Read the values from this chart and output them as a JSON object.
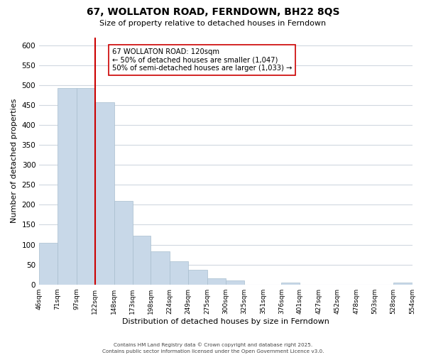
{
  "title": "67, WOLLATON ROAD, FERNDOWN, BH22 8QS",
  "subtitle": "Size of property relative to detached houses in Ferndown",
  "xlabel": "Distribution of detached houses by size in Ferndown",
  "ylabel": "Number of detached properties",
  "bar_values": [
    105,
    492,
    492,
    457,
    209,
    123,
    83,
    58,
    37,
    15,
    10,
    0,
    0,
    5,
    0,
    0,
    0,
    0,
    0,
    5
  ],
  "bin_edges": [
    46,
    71,
    97,
    122,
    148,
    173,
    198,
    224,
    249,
    275,
    300,
    325,
    351,
    376,
    401,
    427,
    452,
    478,
    503,
    528,
    554
  ],
  "tick_labels": [
    "46sqm",
    "71sqm",
    "97sqm",
    "122sqm",
    "148sqm",
    "173sqm",
    "198sqm",
    "224sqm",
    "249sqm",
    "275sqm",
    "300sqm",
    "325sqm",
    "351sqm",
    "376sqm",
    "401sqm",
    "427sqm",
    "452sqm",
    "478sqm",
    "503sqm",
    "528sqm",
    "554sqm"
  ],
  "bar_color": "#c8d8e8",
  "bar_edge_color": "#a8bece",
  "vline_x": 122,
  "vline_color": "#cc0000",
  "annotation_text_line1": "67 WOLLATON ROAD: 120sqm",
  "annotation_text_line2": "← 50% of detached houses are smaller (1,047)",
  "annotation_text_line3": "50% of semi-detached houses are larger (1,033) →",
  "footer_line1": "Contains HM Land Registry data © Crown copyright and database right 2025.",
  "footer_line2": "Contains public sector information licensed under the Open Government Licence v3.0.",
  "ylim": [
    0,
    620
  ],
  "yticks": [
    0,
    50,
    100,
    150,
    200,
    250,
    300,
    350,
    400,
    450,
    500,
    550,
    600
  ],
  "background_color": "#ffffff",
  "grid_color": "#d0d8e0"
}
